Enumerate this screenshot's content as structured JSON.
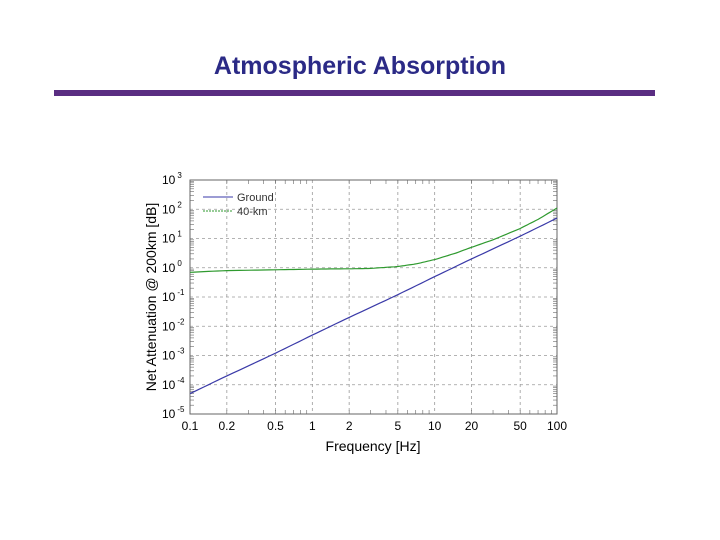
{
  "slide": {
    "title": "Atmospheric Absorption"
  },
  "chart_data": {
    "type": "line",
    "xlabel": "Frequency [Hz]",
    "ylabel": "Net Attenuation @ 200km [dB]",
    "x_scale": "log",
    "y_scale": "log",
    "xlim": [
      0.1,
      100
    ],
    "ylim": [
      1e-05,
      1000
    ],
    "grid": true,
    "legend_position": "top-left",
    "x_ticks": [
      {
        "value": 0.1,
        "label": "0.1"
      },
      {
        "value": 0.2,
        "label": "0.2"
      },
      {
        "value": 0.5,
        "label": "0.5"
      },
      {
        "value": 1,
        "label": "1"
      },
      {
        "value": 2,
        "label": "2"
      },
      {
        "value": 5,
        "label": "5"
      },
      {
        "value": 10,
        "label": "10"
      },
      {
        "value": 20,
        "label": "20"
      },
      {
        "value": 50,
        "label": "50"
      },
      {
        "value": 100,
        "label": "100"
      }
    ],
    "y_ticks": [
      {
        "value": 1000,
        "base": "10",
        "exp": "3"
      },
      {
        "value": 100,
        "base": "10",
        "exp": "2"
      },
      {
        "value": 10,
        "base": "10",
        "exp": "1"
      },
      {
        "value": 1,
        "base": "10",
        "exp": "0"
      },
      {
        "value": 0.1,
        "base": "10",
        "exp": "-1"
      },
      {
        "value": 0.01,
        "base": "10",
        "exp": "-2"
      },
      {
        "value": 0.001,
        "base": "10",
        "exp": "-3"
      },
      {
        "value": 0.0001,
        "base": "10",
        "exp": "-4"
      },
      {
        "value": 1e-05,
        "base": "10",
        "exp": "-5"
      }
    ],
    "series": [
      {
        "name": "Ground",
        "color": "#3a3aa8",
        "x": [
          0.1,
          0.2,
          0.5,
          1,
          2,
          5,
          10,
          20,
          50,
          100
        ],
        "y": [
          5e-05,
          0.0002,
          0.0012,
          0.005,
          0.02,
          0.12,
          0.5,
          2,
          12,
          50
        ]
      },
      {
        "name": "40-km",
        "color": "#2f9a2f",
        "x": [
          0.1,
          0.2,
          0.5,
          1,
          2,
          3,
          5,
          7,
          10,
          15,
          20,
          30,
          50,
          70,
          100
        ],
        "y": [
          0.7,
          0.8,
          0.85,
          0.9,
          0.92,
          0.95,
          1.1,
          1.35,
          1.9,
          3.2,
          5,
          9,
          22,
          45,
          110
        ]
      }
    ]
  }
}
